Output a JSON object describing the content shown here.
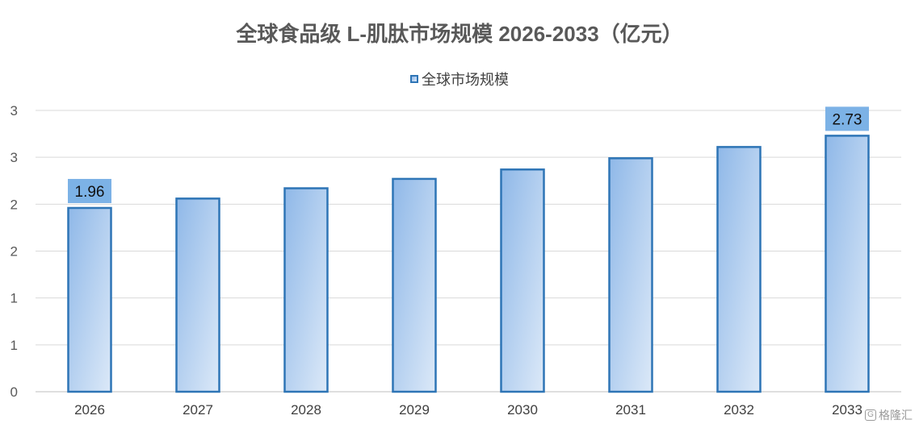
{
  "chart_data": {
    "type": "bar",
    "title": "全球食品级 L-肌肽市场规模 2026-2033（亿元）",
    "categories": [
      "2026",
      "2027",
      "2028",
      "2029",
      "2030",
      "2031",
      "2032",
      "2033"
    ],
    "series": [
      {
        "name": "全球市场规模",
        "values": [
          1.96,
          2.06,
          2.17,
          2.27,
          2.37,
          2.49,
          2.61,
          2.73
        ]
      }
    ],
    "data_labels": [
      {
        "index": 0,
        "text": "1.96"
      },
      {
        "index": 7,
        "text": "2.73"
      }
    ],
    "yticks": [
      "0",
      "1",
      "1",
      "2",
      "2",
      "3",
      "3"
    ],
    "ylim": [
      0,
      3
    ],
    "grid": true,
    "legend": "top-center",
    "colors": {
      "bar_stroke": "#2E75B6",
      "bar_fill_top": "#8FB8E8",
      "bar_fill_bottom": "#DCE9F8",
      "label_bg": "#7CB2E6"
    }
  },
  "watermark": {
    "icon": "gelonghui-logo-icon",
    "text": "格隆汇"
  }
}
